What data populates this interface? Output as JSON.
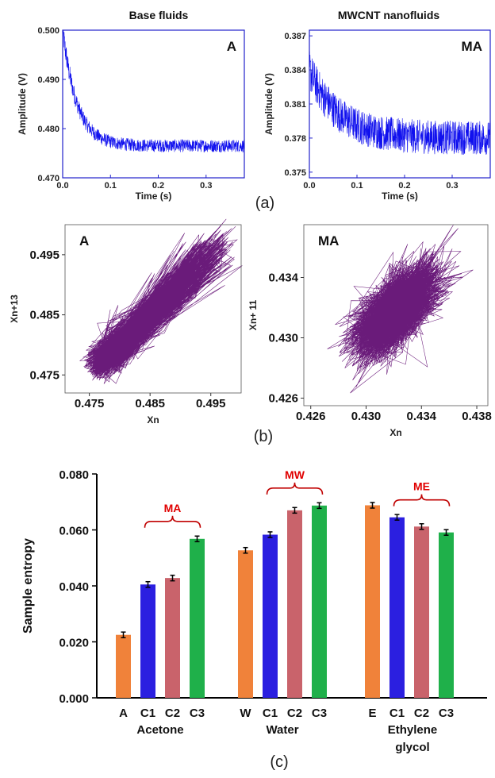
{
  "panels": {
    "a": {
      "letter": "(a)",
      "left": {
        "title": "Base fluids",
        "label": "A",
        "xlabel": "Time (s)",
        "ylabel": "Amplitude (V)",
        "xticks": [
          "0.0",
          "0.1",
          "0.2",
          "0.3"
        ],
        "yticks": [
          "0.470",
          "0.480",
          "0.490",
          "0.500"
        ],
        "xlim": [
          0,
          0.38
        ],
        "ylim": [
          0.47,
          0.5
        ],
        "trace": {
          "start": 0.5,
          "end": 0.4765,
          "tau": 0.03,
          "noise_start": 0.0025,
          "noise": 0.0013
        }
      },
      "right": {
        "title": "MWCNT nanofluids",
        "label": "MA",
        "xlabel": "Time (s)",
        "ylabel": "Amplitude (V)",
        "xticks": [
          "0.0",
          "0.1",
          "0.2",
          "0.3"
        ],
        "yticks": [
          "0.375",
          "0.378",
          "0.381",
          "0.384",
          "0.387"
        ],
        "xlim": [
          0,
          0.38
        ],
        "ylim": [
          0.3745,
          0.3875
        ],
        "trace": {
          "start": 0.384,
          "end": 0.378,
          "tau": 0.06,
          "noise_start": 0.0018,
          "noise": 0.0015
        }
      }
    },
    "b": {
      "letter": "(b)",
      "left": {
        "label": "A",
        "xlabel": "Xn",
        "ylabel": "Xn+13",
        "xticks": [
          "0.475",
          "0.485",
          "0.495"
        ],
        "yticks": [
          "0.475",
          "0.485",
          "0.495"
        ],
        "xlim": [
          0.471,
          0.5
        ],
        "ylim": [
          0.472,
          0.5
        ],
        "color": "#6a1b7a"
      },
      "right": {
        "label": "MA",
        "xlabel": "Xn",
        "ylabel": "Xn+ 11",
        "xticks": [
          "0.426",
          "0.430",
          "0.434",
          "0.438"
        ],
        "yticks": [
          "0.426",
          "0.430",
          "0.434"
        ],
        "xlim": [
          0.4255,
          0.4388
        ],
        "ylim": [
          0.4255,
          0.4375
        ],
        "color": "#6a1b7a"
      }
    },
    "c": {
      "letter": "(c)"
    }
  },
  "chart_data": [
    {
      "type": "line",
      "title": "Base fluids",
      "panel_label": "A",
      "xlabel": "Time (s)",
      "ylabel": "Amplitude (V)",
      "xlim": [
        0,
        0.38
      ],
      "ylim": [
        0.47,
        0.5
      ],
      "series": [
        {
          "x": [
            0.0,
            0.02,
            0.05,
            0.1,
            0.2,
            0.3,
            0.38
          ],
          "values": [
            0.5,
            0.49,
            0.481,
            0.477,
            0.4765,
            0.4765,
            0.4765
          ]
        }
      ]
    },
    {
      "type": "line",
      "title": "MWCNT nanofluids",
      "panel_label": "MA",
      "xlabel": "Time (s)",
      "ylabel": "Amplitude (V)",
      "xlim": [
        0,
        0.38
      ],
      "ylim": [
        0.3745,
        0.3875
      ],
      "series": [
        {
          "x": [
            0.0,
            0.02,
            0.05,
            0.1,
            0.2,
            0.3,
            0.38
          ],
          "values": [
            0.384,
            0.3815,
            0.3795,
            0.3785,
            0.378,
            0.378,
            0.378
          ]
        }
      ]
    },
    {
      "type": "scatter",
      "panel_label": "A",
      "xlabel": "Xn",
      "ylabel": "Xn+13",
      "xlim": [
        0.471,
        0.5
      ],
      "ylim": [
        0.472,
        0.5
      ],
      "series": [
        {
          "x": [
            0.476,
            0.48,
            0.485,
            0.49,
            0.495,
            0.498
          ],
          "values": [
            0.476,
            0.48,
            0.485,
            0.49,
            0.495,
            0.498
          ]
        }
      ]
    },
    {
      "type": "scatter",
      "panel_label": "MA",
      "xlabel": "Xn",
      "ylabel": "Xn+ 11",
      "xlim": [
        0.4255,
        0.4388
      ],
      "ylim": [
        0.4255,
        0.4375
      ],
      "series": [
        {
          "x": [
            0.428,
            0.43,
            0.432,
            0.434,
            0.4355
          ],
          "values": [
            0.4285,
            0.43,
            0.432,
            0.4335,
            0.435
          ]
        }
      ]
    },
    {
      "type": "bar",
      "ylabel": "Sample entropy",
      "ylim": [
        0.0,
        0.08
      ],
      "yticks": [
        "0.000",
        "0.020",
        "0.040",
        "0.060",
        "0.080"
      ],
      "groups": [
        {
          "name": "Acetone",
          "bracket": "MA",
          "bars": [
            {
              "label": "A",
              "value": 0.0225,
              "err": 0.001,
              "color": "#f0823a"
            },
            {
              "label": "C1",
              "value": 0.0405,
              "err": 0.001,
              "color": "#2b1fe0"
            },
            {
              "label": "C2",
              "value": 0.0428,
              "err": 0.001,
              "color": "#c9636b"
            },
            {
              "label": "C3",
              "value": 0.0568,
              "err": 0.001,
              "color": "#1fb04a"
            }
          ]
        },
        {
          "name": "Water",
          "bracket": "MW",
          "bars": [
            {
              "label": "W",
              "value": 0.0527,
              "err": 0.001,
              "color": "#f0823a"
            },
            {
              "label": "C1",
              "value": 0.0583,
              "err": 0.001,
              "color": "#2b1fe0"
            },
            {
              "label": "C2",
              "value": 0.067,
              "err": 0.001,
              "color": "#c9636b"
            },
            {
              "label": "C3",
              "value": 0.0687,
              "err": 0.001,
              "color": "#1fb04a"
            }
          ]
        },
        {
          "name": "Ethylene glycol",
          "name_lines": [
            "Ethylene",
            "glycol"
          ],
          "bracket": "ME",
          "bars": [
            {
              "label": "E",
              "value": 0.0688,
              "err": 0.001,
              "color": "#f0823a"
            },
            {
              "label": "C1",
              "value": 0.0645,
              "err": 0.001,
              "color": "#2b1fe0"
            },
            {
              "label": "C2",
              "value": 0.0612,
              "err": 0.001,
              "color": "#c9636b"
            },
            {
              "label": "C3",
              "value": 0.0591,
              "err": 0.001,
              "color": "#1fb04a"
            }
          ]
        }
      ]
    }
  ]
}
